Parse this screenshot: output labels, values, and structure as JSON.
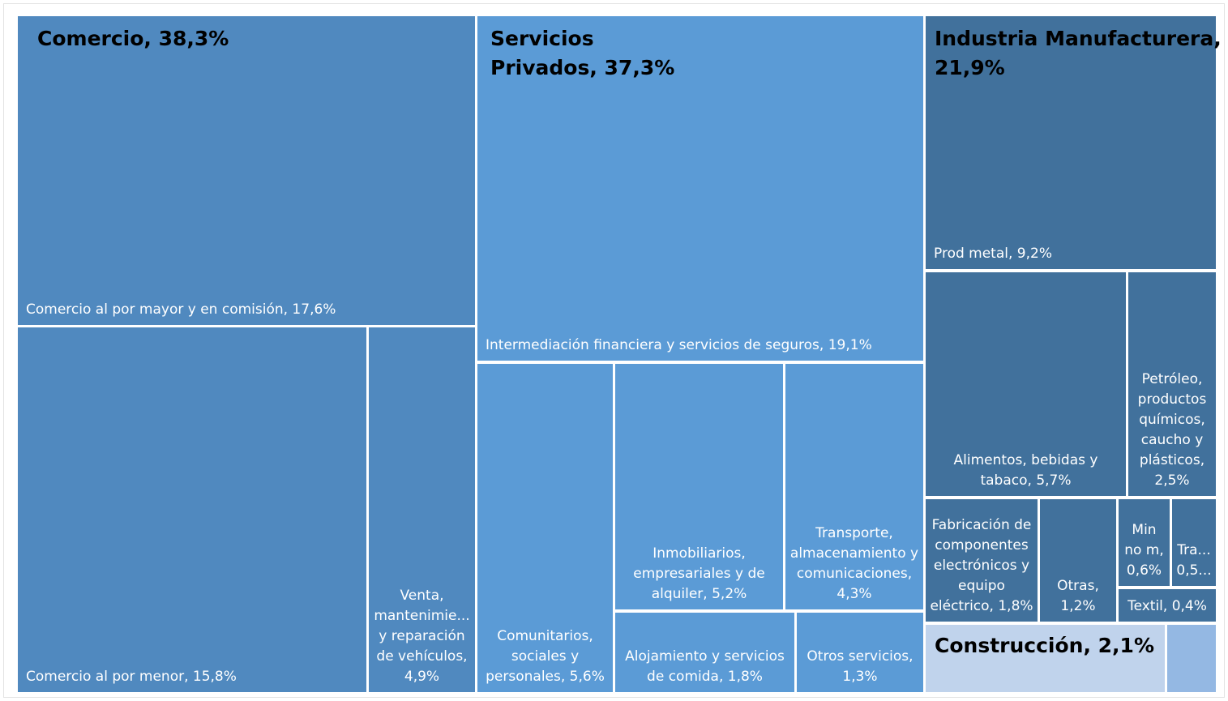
{
  "chart_data": {
    "type": "treemap",
    "groups": [
      {
        "name": "Comercio, 38,3%",
        "value": 38.3,
        "color": "#5089bf",
        "children": [
          {
            "label": "Comercio al por mayor y en comisión, 17,6%",
            "value": 17.6
          },
          {
            "label": "Comercio al por menor, 15,8%",
            "value": 15.8
          },
          {
            "label": "Venta,\nmantenimie...\ny reparación\nde vehículos,\n4,9%",
            "value": 4.9
          }
        ]
      },
      {
        "name": "Servicios\nPrivados, 37,3%",
        "value": 37.3,
        "color": "#5b9bd6",
        "children": [
          {
            "label": "Intermediación financiera y servicios de seguros, 19,1%",
            "value": 19.1
          },
          {
            "label": "Comunitarios,\nsociales y\npersonales, 5,6%",
            "value": 5.6
          },
          {
            "label": "Inmobiliarios,\nempresariales y de\nalquiler, 5,2%",
            "value": 5.2
          },
          {
            "label": "Transporte,\nalmacenamiento y\ncomunicaciones,\n4,3%",
            "value": 4.3
          },
          {
            "label": "Alojamiento y servicios\nde comida, 1,8%",
            "value": 1.8
          },
          {
            "label": "Otros servicios,\n1,3%",
            "value": 1.3
          }
        ]
      },
      {
        "name": "Industria Manufacturera,\n21,9%",
        "value": 21.9,
        "color": "#41719c",
        "children": [
          {
            "label": "Prod metal, 9,2%",
            "value": 9.2
          },
          {
            "label": "Alimentos, bebidas y\ntabaco, 5,7%",
            "value": 5.7
          },
          {
            "label": "Petróleo,\nproductos\nquímicos,\ncaucho y\nplásticos,\n2,5%",
            "value": 2.5
          },
          {
            "label": "Fabricación de\ncomponentes\nelectrónicos y\nequipo\neléctrico, 1,8%",
            "value": 1.8
          },
          {
            "label": "Otras,\n1,2%",
            "value": 1.2
          },
          {
            "label": "Min\nno m,\n0,6%",
            "value": 0.6
          },
          {
            "label": "Tra...\n0,5...",
            "value": 0.5
          },
          {
            "label": "Textil, 0,4%",
            "value": 0.4
          }
        ]
      },
      {
        "name": "Construcción, 2,1%",
        "value": 2.1,
        "color": "#c0d3ec",
        "children": [
          {
            "label": "",
            "value": 2.1
          }
        ]
      }
    ]
  }
}
